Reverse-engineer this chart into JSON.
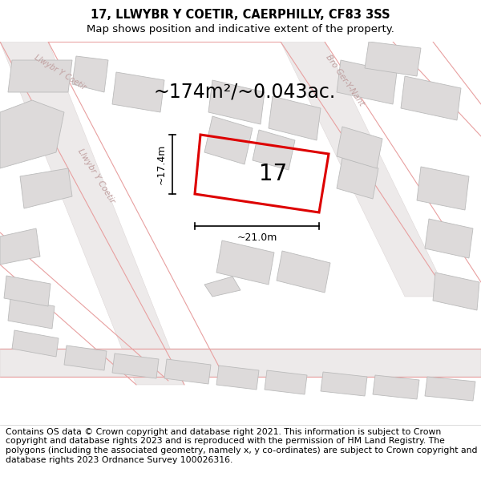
{
  "title": "17, LLWYBR Y COETIR, CAERPHILLY, CF83 3SS",
  "subtitle": "Map shows position and indicative extent of the property.",
  "area_text": "~174m²/~0.043ac.",
  "dim_width": "~21.0m",
  "dim_height": "~17.4m",
  "property_number": "17",
  "footer": "Contains OS data © Crown copyright and database right 2021. This information is subject to Crown copyright and database rights 2023 and is reproduced with the permission of HM Land Registry. The polygons (including the associated geometry, namely x, y co-ordinates) are subject to Crown copyright and database rights 2023 Ordnance Survey 100026316.",
  "map_bg": "#f2f0f0",
  "building_fill": "#dddada",
  "building_edge": "#bbbbbb",
  "road_line_color": "#e8a0a0",
  "road_fill_color": "#ebe8e8",
  "plot_color": "#dd0000",
  "street_label_color": "#c0a0a0",
  "title_fontsize": 10.5,
  "subtitle_fontsize": 9.5,
  "area_fontsize": 17,
  "footer_fontsize": 7.8,
  "dim_fontsize": 9,
  "number_fontsize": 20
}
